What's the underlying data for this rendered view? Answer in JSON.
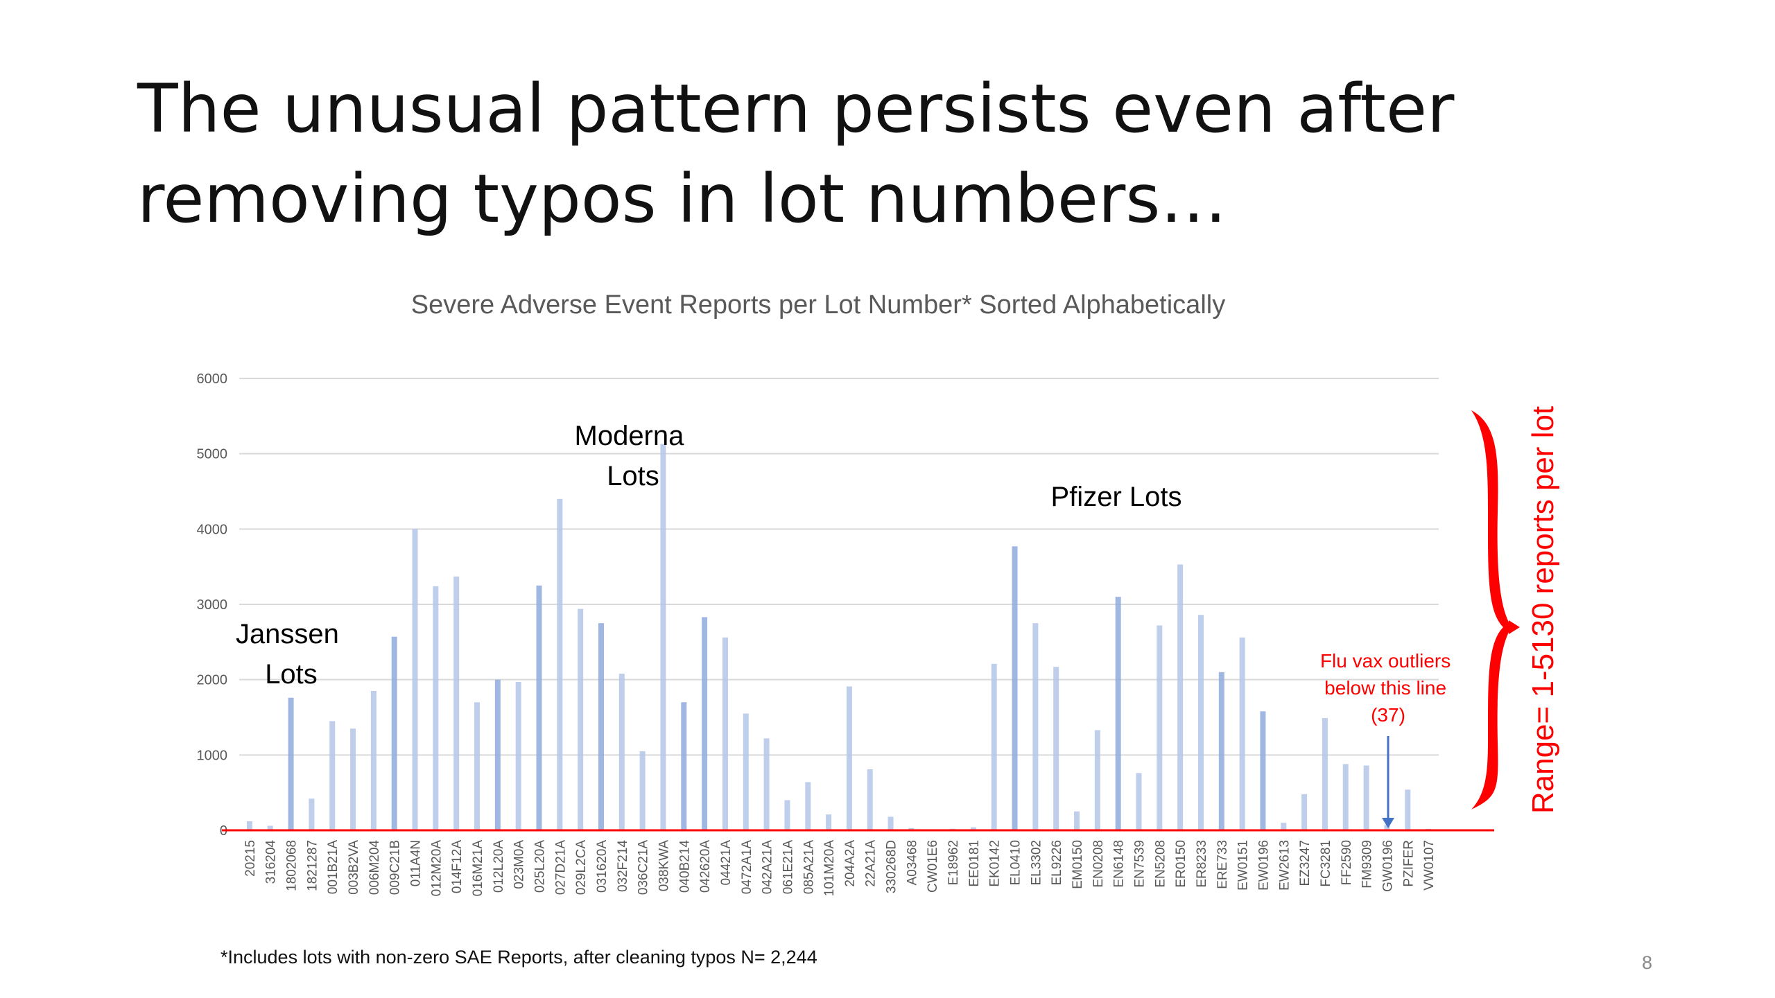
{
  "slide": {
    "title_line1": "The unusual pattern persists even after",
    "title_line2": "removing typos in lot numbers…",
    "footnote": "*Includes lots with non-zero SAE Reports, after cleaning typos N= 2,244",
    "page_number": "8"
  },
  "annotations": {
    "janssen": [
      "Janssen",
      "Lots"
    ],
    "moderna": [
      "Moderna",
      "Lots"
    ],
    "pfizer": [
      "Pfizer Lots"
    ],
    "flu": [
      "Flu vax outliers",
      "below this line",
      "(37)"
    ],
    "range": "Range= 1-5130 reports per lot"
  },
  "colors": {
    "bars": "#b4c7e7",
    "bars_dark": "#8faadc",
    "threshold_line": "#ff0000",
    "flu_arrow": "#4472c4",
    "annotation_red": "#ff0000",
    "gridline": "#d9d9d9",
    "axis_text": "#595959"
  },
  "chart_data": {
    "type": "bar",
    "title": "Severe Adverse Event Reports per Lot Number* Sorted Alphabetically",
    "xlabel": "",
    "ylabel": "",
    "ylim": [
      0,
      6000
    ],
    "yticks": [
      0,
      1000,
      2000,
      3000,
      4000,
      5000,
      6000
    ],
    "grid": true,
    "legend": "none",
    "threshold": 0,
    "categories": [
      "20215",
      "316204",
      "1802068",
      "1821287",
      "001B21A",
      "003B2VA",
      "006M204",
      "009C21B",
      "011A4N",
      "012M20A",
      "014F12A",
      "016M21A",
      "012L20A",
      "023M0A",
      "025L20A",
      "027D21A",
      "029L2CA",
      "031620A",
      "032F214",
      "036C21A",
      "038KWA",
      "040B214",
      "042620A",
      "04421A",
      "0472A1A",
      "042A21A",
      "061E21A",
      "085A21A",
      "101M20A",
      "204A2A",
      "22A21A",
      "330268D",
      "A03468",
      "CW01E6",
      "E18962",
      "EE0181",
      "EK0142",
      "EL0410",
      "EL3302",
      "EL9226",
      "EM0150",
      "EN0208",
      "EN6148",
      "EN7539",
      "EN5208",
      "ER0150",
      "ER8233",
      "ERE733",
      "EW0151",
      "EW0196",
      "EW2613",
      "EZ3247",
      "FC3281",
      "FF2590",
      "FM9309",
      "GW0196",
      "PZIFER",
      "VW0107"
    ],
    "values": [
      120,
      60,
      1760,
      420,
      1450,
      1350,
      1850,
      2570,
      4000,
      3240,
      3370,
      1700,
      2000,
      1970,
      3250,
      4400,
      2940,
      2750,
      2080,
      1050,
      5130,
      1700,
      2830,
      2560,
      1550,
      1220,
      400,
      640,
      210,
      1910,
      810,
      180,
      30,
      10,
      20,
      40,
      2210,
      3770,
      2750,
      2170,
      250,
      1330,
      3100,
      760,
      2720,
      3530,
      2860,
      2100,
      2560,
      1580,
      100,
      480,
      1490,
      880,
      860,
      70,
      540,
      20
    ]
  }
}
